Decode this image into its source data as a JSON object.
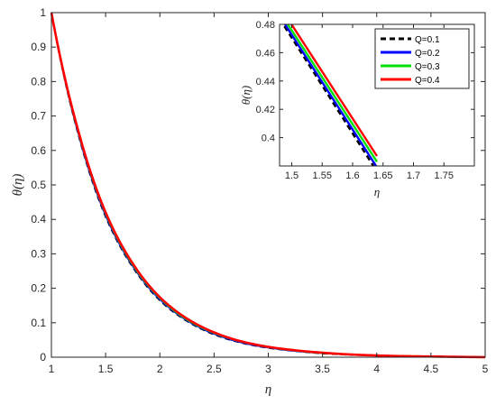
{
  "chart_data": [
    {
      "type": "line",
      "xlabel": "η",
      "ylabel": "θ(η)",
      "xlim": [
        1,
        5
      ],
      "ylim": [
        0,
        1
      ],
      "xticks": [
        1,
        1.5,
        2,
        2.5,
        3,
        3.5,
        4,
        4.5,
        5
      ],
      "xtick_labels": [
        "1",
        "1.5",
        "2",
        "2.5",
        "3",
        "3.5",
        "4",
        "4.5",
        "5"
      ],
      "yticks": [
        0,
        0.1,
        0.2,
        0.3,
        0.4,
        0.5,
        0.6,
        0.7,
        0.8,
        0.9,
        1
      ],
      "ytick_labels": [
        "0",
        "0.1",
        "0.2",
        "0.3",
        "0.4",
        "0.5",
        "0.6",
        "0.7",
        "0.8",
        "0.9",
        "1"
      ],
      "grid": false,
      "x": [
        1,
        1.25,
        1.5,
        1.75,
        2,
        2.25,
        2.5,
        2.75,
        3,
        3.25,
        3.5,
        3.75,
        4,
        4.25,
        4.5,
        4.75,
        5
      ],
      "series": [
        {
          "name": "Q=0.1",
          "color": "#000000",
          "dash": true,
          "values": [
            1,
            0.645,
            0.408,
            0.262,
            0.165,
            0.105,
            0.066,
            0.042,
            0.027,
            0.018,
            0.011,
            0.007,
            0.005,
            0.003,
            0.002,
            0.001,
            0
          ]
        },
        {
          "name": "Q=0.2",
          "color": "#0000ff",
          "dash": false,
          "values": [
            1,
            0.648,
            0.412,
            0.265,
            0.168,
            0.107,
            0.068,
            0.043,
            0.028,
            0.018,
            0.012,
            0.008,
            0.005,
            0.003,
            0.002,
            0.001,
            0
          ]
        },
        {
          "name": "Q=0.3",
          "color": "#00e000",
          "dash": false,
          "values": [
            1,
            0.651,
            0.416,
            0.268,
            0.171,
            0.109,
            0.07,
            0.045,
            0.029,
            0.019,
            0.012,
            0.008,
            0.005,
            0.003,
            0.002,
            0.001,
            0
          ]
        },
        {
          "name": "Q=0.4",
          "color": "#ff0000",
          "dash": false,
          "values": [
            1,
            0.655,
            0.42,
            0.272,
            0.174,
            0.112,
            0.072,
            0.046,
            0.03,
            0.02,
            0.013,
            0.008,
            0.005,
            0.003,
            0.002,
            0.001,
            0
          ]
        }
      ]
    },
    {
      "type": "line",
      "xlabel": "η",
      "ylabel": "θ(η)",
      "xlim": [
        1.48,
        1.8
      ],
      "ylim": [
        0.38,
        0.48
      ],
      "xticks": [
        1.5,
        1.55,
        1.6,
        1.65,
        1.7,
        1.75
      ],
      "xtick_labels": [
        "1.5",
        "1.55",
        "1.6",
        "1.65",
        "1.7",
        "1.75"
      ],
      "yticks": [
        0.4,
        0.42,
        0.44,
        0.46,
        0.48
      ],
      "ytick_labels": [
        "0.4",
        "0.42",
        "0.44",
        "0.46",
        "0.48"
      ],
      "legend_position": "top-right",
      "grid": false,
      "x": [
        1.48,
        1.64
      ],
      "series": [
        {
          "name": "Q=0.1",
          "color": "#000000",
          "dash": true,
          "values": [
            0.484,
            0.376
          ]
        },
        {
          "name": "Q=0.2",
          "color": "#0000ff",
          "dash": false,
          "values": [
            0.486,
            0.379
          ]
        },
        {
          "name": "Q=0.3",
          "color": "#00e000",
          "dash": false,
          "values": [
            0.489,
            0.383
          ]
        },
        {
          "name": "Q=0.4",
          "color": "#ff0000",
          "dash": false,
          "values": [
            0.493,
            0.387
          ]
        }
      ]
    }
  ]
}
